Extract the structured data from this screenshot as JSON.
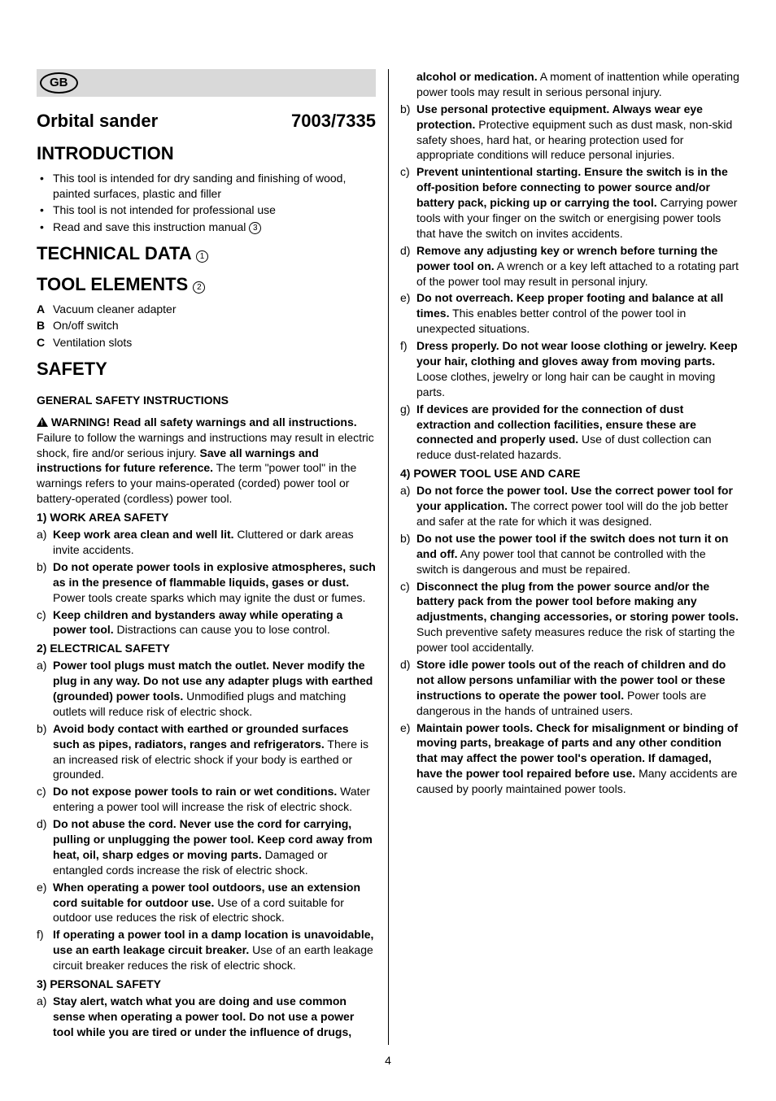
{
  "badge": "GB",
  "title": "Orbital sander",
  "model": "7003/7335",
  "headings": {
    "intro": "INTRODUCTION",
    "tech": "TECHNICAL DATA",
    "elements": "TOOL ELEMENTS",
    "safety": "SAFETY",
    "general": "GENERAL SAFETY INSTRUCTIONS"
  },
  "circled": {
    "tech": "1",
    "elements": "2",
    "manual": "3"
  },
  "intro_items": [
    "This tool is intended for dry sanding and finishing of wood, painted surfaces, plastic and filler",
    "This tool is not intended for professional use",
    "Read and save this instruction manual "
  ],
  "tool_elements": [
    {
      "l": "A",
      "t": "Vacuum cleaner adapter"
    },
    {
      "l": "B",
      "t": "On/off switch"
    },
    {
      "l": "C",
      "t": "Ventilation slots"
    }
  ],
  "warning_bold1": "WARNING! Read all safety warnings and all instructions.",
  "warning_text1": " Failure to follow the warnings and instructions may result in electric shock, fire and/or serious injury. ",
  "warning_bold2": "Save all warnings and instructions for future reference.",
  "warning_text2": " The term \"power tool\" in the warnings refers to your mains-operated (corded) power tool or battery-operated (cordless) power tool.",
  "sections": {
    "s1": "1) WORK AREA SAFETY",
    "s2": "2) ELECTRICAL SAFETY",
    "s3": "3) PERSONAL SAFETY",
    "s4": "4) POWER TOOL USE AND CARE"
  },
  "s1": [
    {
      "m": "a)",
      "b": "Keep work area clean and well lit.",
      "t": " Cluttered or dark areas invite accidents."
    },
    {
      "m": "b)",
      "b": "Do not operate power tools in explosive atmospheres, such as in the presence of flammable liquids, gases or dust.",
      "t": " Power tools create sparks which may ignite the dust or fumes."
    },
    {
      "m": "c)",
      "b": "Keep children and bystanders away while operating a power tool.",
      "t": " Distractions can cause you to lose control."
    }
  ],
  "s2": [
    {
      "m": "a)",
      "b": "Power tool plugs must match the outlet. Never modify the plug in any way. Do not use any adapter plugs with earthed (grounded) power tools.",
      "t": " Unmodified plugs and matching outlets will reduce risk of electric shock."
    },
    {
      "m": "b)",
      "b": "Avoid body contact with earthed or grounded surfaces such as pipes, radiators, ranges and refrigerators.",
      "t": " There is an increased risk of electric shock if your body is earthed or grounded."
    },
    {
      "m": "c)",
      "b": "Do not expose power tools to rain or wet conditions.",
      "t": " Water entering a power tool will increase the risk of electric shock."
    },
    {
      "m": "d)",
      "b": "Do not abuse the cord. Never use the cord for carrying, pulling or unplugging the power tool. Keep cord away from heat, oil, sharp edges or moving parts.",
      "t": " Damaged or entangled cords increase the risk of electric shock."
    },
    {
      "m": "e)",
      "b": "When operating a power tool outdoors, use an extension cord suitable for outdoor use.",
      "t": " Use of a cord suitable for outdoor use reduces the risk of electric shock."
    },
    {
      "m": "f)",
      "b": "If operating a power tool in a damp location is unavoidable, use an earth leakage circuit breaker.",
      "t": " Use of an earth leakage circuit breaker reduces the risk of electric shock."
    }
  ],
  "s3": [
    {
      "m": "a)",
      "b": "Stay alert, watch what you are doing and use common sense when operating a power tool. Do not use a power tool while you are tired or under the influence of drugs, alcohol or medication.",
      "t": " A moment of inattention while operating power tools may result in serious personal injury."
    },
    {
      "m": "b)",
      "b": "Use personal protective equipment. Always wear eye protection.",
      "t": " Protective equipment such as dust mask, non-skid safety shoes, hard hat, or hearing protection used for appropriate conditions will reduce personal injuries."
    },
    {
      "m": "c)",
      "b": "Prevent unintentional starting. Ensure the switch is in the off-position before connecting to power source and/or battery pack, picking up or carrying the tool.",
      "t": " Carrying power tools with your finger on the switch or energising power tools that have the switch on invites accidents."
    },
    {
      "m": "d)",
      "b": "Remove any adjusting key or wrench before turning the power tool on.",
      "t": " A wrench or a key left attached to a rotating part of the power tool may result in personal injury."
    },
    {
      "m": "e)",
      "b": "Do not overreach. Keep proper footing and balance at all times.",
      "t": " This enables better control of the power tool in unexpected situations."
    },
    {
      "m": "f)",
      "b": "Dress properly. Do not wear loose clothing or jewelry. Keep your hair, clothing and gloves away from moving parts.",
      "t": " Loose clothes, jewelry or long hair can be caught in moving parts."
    },
    {
      "m": "g)",
      "b": "If devices are provided for the connection of dust extraction and collection facilities, ensure these are connected and properly used.",
      "t": " Use of dust collection can reduce dust-related hazards."
    }
  ],
  "s4": [
    {
      "m": "a)",
      "b": "Do not force the power tool. Use the correct power tool for your application.",
      "t": " The correct power tool will do the job better and safer at the rate for which it was designed."
    },
    {
      "m": "b)",
      "b": "Do not use the power tool if the switch does not turn it on and off.",
      "t": " Any power tool that cannot be controlled with the switch is dangerous and must be repaired."
    },
    {
      "m": "c)",
      "b": "Disconnect the plug from the power source and/or the battery pack from the power tool before making any adjustments, changing accessories, or storing power tools.",
      "t": " Such preventive safety measures reduce the risk of starting the power tool accidentally."
    },
    {
      "m": "d)",
      "b": "Store idle power tools out of the reach of children and do not allow persons unfamiliar with the power tool or these instructions to operate the power tool.",
      "t": " Power tools are dangerous in the hands of untrained users."
    },
    {
      "m": "e)",
      "b": "Maintain power tools. Check for misalignment or binding of moving parts, breakage of parts and any other condition that may affect the power tool's operation. If damaged, have the power tool repaired before use.",
      "t": " Many accidents are caused by poorly maintained power tools."
    }
  ],
  "page_number": "4"
}
